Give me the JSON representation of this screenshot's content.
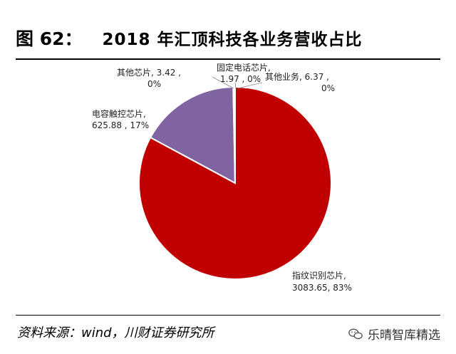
{
  "figure": {
    "number": "图 62：",
    "title": "2018 年汇顶科技各业务营收占比"
  },
  "chart_data": {
    "type": "pie",
    "title": "2018 年汇顶科技各业务营收占比",
    "slices": [
      {
        "name": "指纹识别芯片",
        "value": 3083.65,
        "pct_label": "83%",
        "color": "#C00000"
      },
      {
        "name": "电容触控芯片",
        "value": 625.88,
        "pct_label": "17%",
        "color": "#8064A2"
      },
      {
        "name": "其他芯片",
        "value": 3.42,
        "pct_label": "0%",
        "color": "#4F81BD"
      },
      {
        "name": "固定电话芯片",
        "value": 1.97,
        "pct_label": "0%",
        "color": "#9BBB59"
      },
      {
        "name": "其他业务",
        "value": 6.37,
        "pct_label": "0%",
        "color": "#F79646"
      }
    ],
    "labels": {
      "fingerprint": {
        "line1": "指纹识别芯片,",
        "line2": "3083.65, 83%"
      },
      "touch": {
        "line1": "电容触控芯片,",
        "line2": "625.88 , 17%"
      },
      "other_chip": {
        "line1": "其他芯片, 3.42 ,",
        "line2": "0%"
      },
      "landline": {
        "line1": "固定电话芯片,",
        "line2": "1.97 , 0%"
      },
      "other_biz": {
        "line1": "其他业务, 6.37 ,",
        "line2": "0%"
      }
    }
  },
  "footer": {
    "source": "资料来源：wind，川财证券研究所",
    "watermark": "乐晴智库精选"
  }
}
